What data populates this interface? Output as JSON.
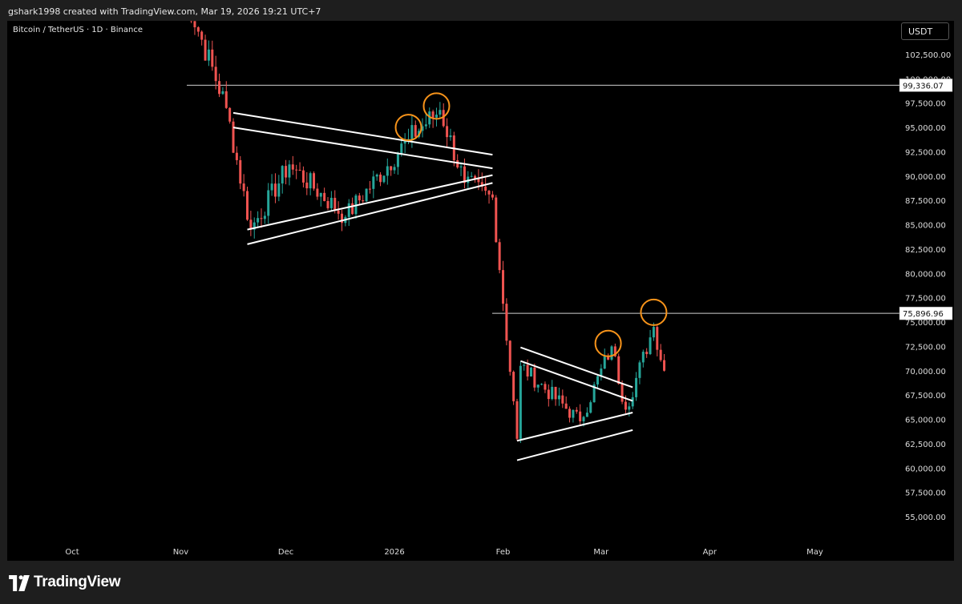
{
  "header": {
    "attribution": "gshark1998 created with TradingView.com, Mar 19, 2026 19:21 UTC+7"
  },
  "symbol": {
    "title": "Bitcoin / TetherUS · 1D · Binance",
    "currency_button": "USDT"
  },
  "footer": {
    "brand": "TradingView"
  },
  "colors": {
    "up": "#26a69a",
    "down": "#ef5350",
    "background": "#000000",
    "frame": "#1e1e1e",
    "trendline": "#ffffff",
    "circle": "#f7931a"
  },
  "chart_data": {
    "type": "candlestick",
    "title": "",
    "xlabel": "",
    "ylabel": "",
    "ylim": [
      52700,
      104700
    ],
    "y_ticks": [
      "55,000.00",
      "57,500.00",
      "60,000.00",
      "62,500.00",
      "65,000.00",
      "67,500.00",
      "70,000.00",
      "72,500.00",
      "75,000.00",
      "77,500.00",
      "80,000.00",
      "82,500.00",
      "85,000.00",
      "87,500.00",
      "90,000.00",
      "92,500.00",
      "95,000.00",
      "97,500.00",
      "100,000.00",
      "102,500.00"
    ],
    "y_tick_values": [
      55000,
      57500,
      60000,
      62500,
      65000,
      67500,
      70000,
      72500,
      75000,
      77500,
      80000,
      82500,
      85000,
      87500,
      90000,
      92500,
      95000,
      97500,
      100000,
      102500
    ],
    "x_ticks": [
      "Oct",
      "Nov",
      "Dec",
      "2026",
      "Feb",
      "Mar",
      "Apr",
      "May"
    ],
    "x_tick_dates": [
      "2025-10-01",
      "2025-11-01",
      "2025-12-01",
      "2026-01-01",
      "2026-02-01",
      "2026-03-01",
      "2026-04-01",
      "2026-05-01"
    ],
    "x_range": [
      "2025-10-01",
      "2026-05-01"
    ],
    "horizontal_levels": [
      {
        "label": "99,336.07",
        "value": 99336.07
      },
      {
        "label": "75,896.96",
        "value": 75896.96
      }
    ],
    "key_closes": [
      {
        "date": "2025-11-01",
        "value": 110000
      },
      {
        "date": "2025-11-14",
        "value": 97000
      },
      {
        "date": "2025-11-21",
        "value": 84500
      },
      {
        "date": "2025-12-02",
        "value": 91200
      },
      {
        "date": "2025-12-18",
        "value": 85800
      },
      {
        "date": "2026-01-05",
        "value": 93800
      },
      {
        "date": "2026-01-14",
        "value": 96800
      },
      {
        "date": "2026-01-21",
        "value": 89300
      },
      {
        "date": "2026-01-29",
        "value": 87800
      },
      {
        "date": "2026-02-05",
        "value": 63000
      },
      {
        "date": "2026-02-06",
        "value": 70500
      },
      {
        "date": "2026-02-23",
        "value": 64800
      },
      {
        "date": "2026-03-04",
        "value": 72500
      },
      {
        "date": "2026-03-08",
        "value": 66000
      },
      {
        "date": "2026-03-16",
        "value": 74500
      },
      {
        "date": "2026-03-19",
        "value": 70000
      }
    ],
    "trendlines": [
      {
        "name": "upper-triangle-top-1",
        "from": {
          "date": "2025-11-16",
          "value": 96500
        },
        "to": {
          "date": "2026-01-29",
          "value": 92200
        }
      },
      {
        "name": "upper-triangle-top-2",
        "from": {
          "date": "2025-11-16",
          "value": 95000
        },
        "to": {
          "date": "2026-01-29",
          "value": 90800
        }
      },
      {
        "name": "upper-triangle-bottom-1",
        "from": {
          "date": "2025-11-20",
          "value": 84500
        },
        "to": {
          "date": "2026-01-29",
          "value": 90100
        }
      },
      {
        "name": "upper-triangle-bottom-2",
        "from": {
          "date": "2025-11-20",
          "value": 83000
        },
        "to": {
          "date": "2026-01-29",
          "value": 89300
        }
      },
      {
        "name": "lower-triangle-top-1",
        "from": {
          "date": "2026-02-06",
          "value": 72400
        },
        "to": {
          "date": "2026-03-10",
          "value": 68300
        }
      },
      {
        "name": "lower-triangle-top-2",
        "from": {
          "date": "2026-02-06",
          "value": 71000
        },
        "to": {
          "date": "2026-03-10",
          "value": 66900
        }
      },
      {
        "name": "lower-triangle-bottom-1",
        "from": {
          "date": "2026-02-05",
          "value": 62800
        },
        "to": {
          "date": "2026-03-10",
          "value": 65700
        }
      },
      {
        "name": "lower-triangle-bottom-2",
        "from": {
          "date": "2026-02-05",
          "value": 60800
        },
        "to": {
          "date": "2026-03-10",
          "value": 63900
        }
      }
    ],
    "circles": [
      {
        "date": "2026-01-05",
        "value": 95000
      },
      {
        "date": "2026-01-13",
        "value": 97200
      },
      {
        "date": "2026-03-03",
        "value": 72800
      },
      {
        "date": "2026-03-16",
        "value": 76000
      }
    ],
    "grid": false,
    "scale": "linear"
  }
}
